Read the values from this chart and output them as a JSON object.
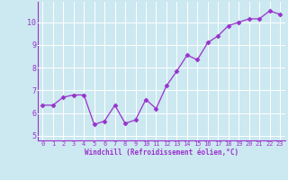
{
  "x": [
    0,
    1,
    2,
    3,
    4,
    5,
    6,
    7,
    8,
    9,
    10,
    11,
    12,
    13,
    14,
    15,
    16,
    17,
    18,
    19,
    20,
    21,
    22,
    23
  ],
  "y": [
    6.35,
    6.35,
    6.7,
    6.8,
    6.8,
    5.5,
    5.65,
    6.35,
    5.55,
    5.7,
    6.6,
    6.2,
    7.2,
    7.85,
    8.55,
    8.35,
    9.1,
    9.4,
    9.85,
    10.0,
    10.15,
    10.15,
    10.5,
    10.35
  ],
  "line_color": "#9932CC",
  "marker": "D",
  "marker_size": 2.5,
  "bg_color": "#cce8f0",
  "grid_color": "#ffffff",
  "xlabel": "Windchill (Refroidissement éolien,°C)",
  "ylabel": "",
  "xlim": [
    -0.5,
    23.5
  ],
  "ylim": [
    4.8,
    10.9
  ],
  "yticks": [
    5,
    6,
    7,
    8,
    9,
    10
  ],
  "xticks": [
    0,
    1,
    2,
    3,
    4,
    5,
    6,
    7,
    8,
    9,
    10,
    11,
    12,
    13,
    14,
    15,
    16,
    17,
    18,
    19,
    20,
    21,
    22,
    23
  ],
  "xlabel_color": "#9932CC",
  "tick_color": "#9932CC",
  "spine_color": "#9932CC",
  "font_family": "monospace"
}
